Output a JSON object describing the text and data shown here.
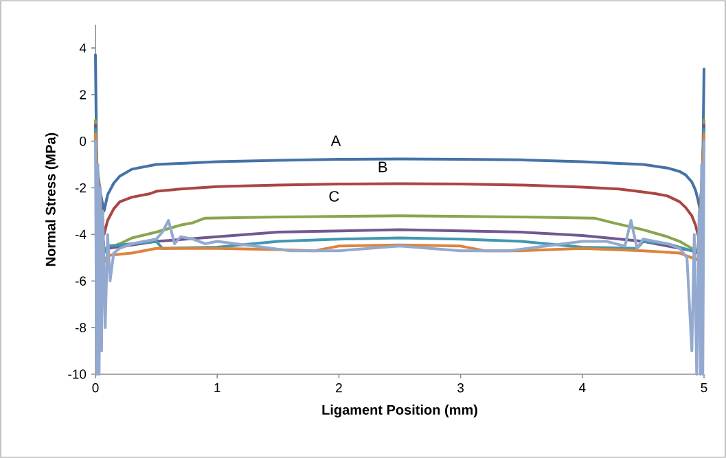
{
  "chart_data": {
    "type": "line",
    "xlabel": "Ligament Position (mm)",
    "ylabel": "Normal Stress (MPa)",
    "xlim": [
      0,
      5
    ],
    "ylim": [
      -10,
      5
    ],
    "xticks": [
      0,
      1,
      2,
      3,
      4,
      5
    ],
    "yticks": [
      -10,
      -8,
      -6,
      -4,
      -2,
      0,
      2,
      4
    ],
    "grid": false,
    "legend": false,
    "marker": "none",
    "line_style": "solid",
    "series": [
      {
        "color": "#4572a7",
        "x": [
          0,
          0.01,
          0.04,
          0.07,
          0.1,
          0.15,
          0.2,
          0.3,
          0.5,
          0.7,
          1,
          1.5,
          2,
          2.5,
          3,
          3.5,
          4,
          4.3,
          4.5,
          4.7,
          4.8,
          4.85,
          4.9,
          4.93,
          4.95,
          4.97,
          4.99,
          5
        ],
        "values": [
          3.7,
          -1,
          -2.2,
          -3,
          -2.3,
          -1.8,
          -1.5,
          -1.2,
          -1,
          -0.95,
          -0.88,
          -0.82,
          -0.78,
          -0.76,
          -0.78,
          -0.8,
          -0.88,
          -0.95,
          -1,
          -1.15,
          -1.3,
          -1.45,
          -1.75,
          -2.1,
          -2.5,
          -3,
          -1,
          3.1
        ]
      },
      {
        "color": "#aa4643",
        "x": [
          0,
          0.01,
          0.04,
          0.07,
          0.1,
          0.15,
          0.2,
          0.3,
          0.45,
          0.5,
          0.7,
          1,
          1.5,
          2,
          2.5,
          3,
          3.5,
          4,
          4.3,
          4.45,
          4.6,
          4.7,
          4.8,
          4.85,
          4.9,
          4.93,
          4.95,
          4.97,
          5
        ],
        "values": [
          0.6,
          -1,
          null,
          -4,
          -3.4,
          -2.9,
          -2.6,
          -2.4,
          -2.25,
          -2.15,
          -2.05,
          -1.95,
          -1.88,
          -1.84,
          -1.82,
          -1.84,
          -1.88,
          -1.97,
          -2.05,
          -2.15,
          -2.25,
          -2.35,
          -2.6,
          -2.85,
          -3.2,
          -3.6,
          -4,
          -4.4,
          0.6
        ]
      },
      {
        "color": "#89a54e",
        "x": [
          0,
          0.01,
          0.07,
          0.1,
          0.2,
          0.3,
          0.5,
          0.7,
          0.8,
          0.9,
          1.5,
          2.5,
          3.5,
          4.1,
          4.25,
          4.5,
          4.7,
          4.8,
          4.9,
          4.95,
          4.99,
          5
        ],
        "values": [
          0.9,
          -1,
          -4.6,
          -4.6,
          -4.4,
          -4.15,
          -3.9,
          -3.6,
          -3.5,
          -3.3,
          -3.25,
          -3.2,
          -3.25,
          -3.3,
          -3.5,
          -3.8,
          -4.1,
          -4.3,
          -4.6,
          -4.7,
          -1,
          0.9
        ]
      },
      {
        "color": "#71588f",
        "x": [
          0,
          0.01,
          0.07,
          0.1,
          0.3,
          0.5,
          1,
          1.5,
          2.5,
          3.5,
          4,
          4.5,
          4.7,
          4.9,
          4.95,
          4.99,
          5
        ],
        "values": [
          0.7,
          -1,
          -4.7,
          -4.6,
          -4.45,
          -4.3,
          -4.1,
          -3.9,
          -3.8,
          -3.9,
          -4.05,
          -4.3,
          -4.5,
          -4.7,
          -4.8,
          -1,
          0.7
        ]
      },
      {
        "color": "#4198af",
        "x": [
          0,
          0.01,
          0.07,
          0.1,
          0.3,
          0.5,
          0.55,
          1,
          1.5,
          2,
          2.5,
          3,
          3.5,
          4,
          4.45,
          4.5,
          4.7,
          4.9,
          4.95,
          4.99,
          5
        ],
        "values": [
          0.5,
          -1,
          -4.8,
          -4.5,
          -4.4,
          -4.3,
          -4.6,
          -4.55,
          -4.3,
          -4.2,
          -4.15,
          -4.2,
          -4.3,
          -4.55,
          -4.6,
          -4.3,
          -4.4,
          -4.7,
          -4.8,
          -1,
          0.5
        ]
      },
      {
        "color": "#db843d",
        "x": [
          0,
          0.01,
          0.07,
          0.1,
          0.3,
          0.5,
          1,
          1.5,
          1.8,
          2,
          2.5,
          3,
          3.2,
          3.5,
          4,
          4.5,
          4.8,
          4.9,
          4.95,
          4.99,
          5
        ],
        "values": [
          0.3,
          -1,
          -5.2,
          -4.9,
          -4.8,
          -4.6,
          -4.6,
          -4.65,
          -4.7,
          -4.5,
          -4.45,
          -4.5,
          -4.7,
          -4.7,
          -4.6,
          -4.7,
          -4.8,
          -5,
          -5.1,
          -1,
          0.3
        ]
      },
      {
        "color": "#93a9cf",
        "x": [
          0,
          0.01,
          0.02,
          0.03,
          0.04,
          0.05,
          0.06,
          0.08,
          0.1,
          0.12,
          0.15,
          0.2,
          0.3,
          0.4,
          0.5,
          0.55,
          0.6,
          0.65,
          0.7,
          0.8,
          0.9,
          1,
          1.3,
          1.6,
          2,
          2.5,
          3,
          3.4,
          3.7,
          4,
          4.2,
          4.35,
          4.4,
          4.45,
          4.5,
          4.6,
          4.7,
          4.8,
          4.86,
          4.88,
          4.9,
          4.92,
          4.94,
          4.96,
          4.97,
          4.98,
          4.99,
          5
        ],
        "values": [
          0,
          -10,
          -1,
          -10,
          -2,
          -9,
          -3,
          -8,
          -4,
          -6,
          -4.8,
          -4.6,
          -4.4,
          -4.3,
          -4.2,
          -3.9,
          -3.4,
          -4.4,
          -4.1,
          -4.2,
          -4.4,
          -4.3,
          -4.5,
          -4.7,
          -4.7,
          -4.5,
          -4.7,
          -4.7,
          -4.5,
          -4.3,
          -4.3,
          -4.5,
          -3.4,
          -4.6,
          -4.2,
          -4.3,
          -4.4,
          -4.6,
          -5,
          -7,
          -9,
          -4,
          -10,
          -3,
          -10,
          -1,
          -10,
          0
        ]
      }
    ],
    "annotations": [
      "A",
      "B",
      "C"
    ]
  }
}
